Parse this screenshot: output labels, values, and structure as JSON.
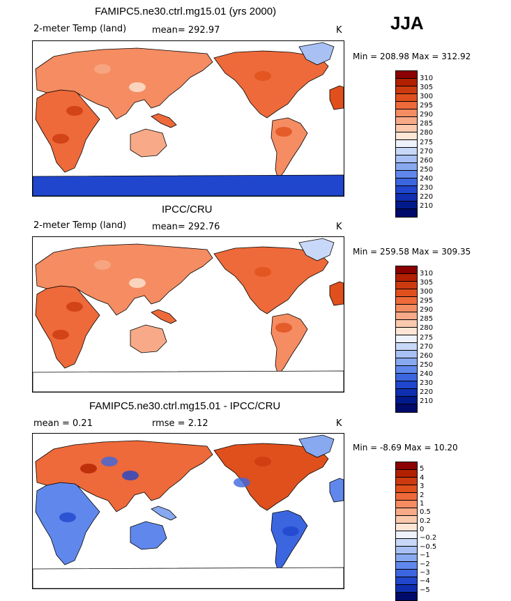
{
  "season": "JJA",
  "panels": [
    {
      "title": "FAMIPC5.ne30.ctrl.mg15.01 (yrs 2000)",
      "left_label": "2-meter Temp (land)",
      "middle_label": "mean= 292.97",
      "right_label": "K",
      "minmax": "Min = 208.98 Max = 312.92",
      "kind": "abs"
    },
    {
      "title": "IPCC/CRU",
      "left_label": "2-meter Temp (land)",
      "middle_label": "mean= 292.76",
      "right_label": "K",
      "minmax": "Min = 259.58 Max = 309.35",
      "kind": "abs_obs"
    },
    {
      "title": "FAMIPC5.ne30.ctrl.mg15.01 - IPCC/CRU",
      "left_label": "mean =    0.21",
      "middle_label": "rmse =    2.12",
      "right_label": "K",
      "minmax": "Min =  -8.69 Max =  10.20",
      "kind": "diff"
    }
  ],
  "colorbars": {
    "abs": {
      "colors": [
        "#8b0000",
        "#b22000",
        "#cc3a10",
        "#e0501c",
        "#ee6a3a",
        "#f58c62",
        "#f8aa88",
        "#fbc9ad",
        "#fde6d6",
        "#eef2fb",
        "#c8d8f8",
        "#a8c0f4",
        "#88a8f0",
        "#6088ec",
        "#3c66e0",
        "#1f46cc",
        "#0f2fb0",
        "#001a8c",
        "#000a6a"
      ],
      "ticks": [
        "310",
        "305",
        "300",
        "295",
        "290",
        "285",
        "280",
        "275",
        "270",
        "260",
        "250",
        "240",
        "230",
        "220",
        "210"
      ]
    },
    "diff": {
      "colors": [
        "#8b0000",
        "#b22000",
        "#cc3a10",
        "#e0501c",
        "#ee6a3a",
        "#f58c62",
        "#f8aa88",
        "#fbc9ad",
        "#fde6d6",
        "#eef2fb",
        "#c8d8f8",
        "#a8c0f4",
        "#88a8f0",
        "#6088ec",
        "#3c66e0",
        "#1f46cc",
        "#0f2fb0",
        "#000a6a"
      ],
      "ticks": [
        "5",
        "4",
        "3",
        "2",
        "1",
        "0.5",
        "0.2",
        "0",
        "−0.2",
        "−0.5",
        "−1",
        "−2",
        "−3",
        "−4",
        "−5"
      ]
    }
  }
}
